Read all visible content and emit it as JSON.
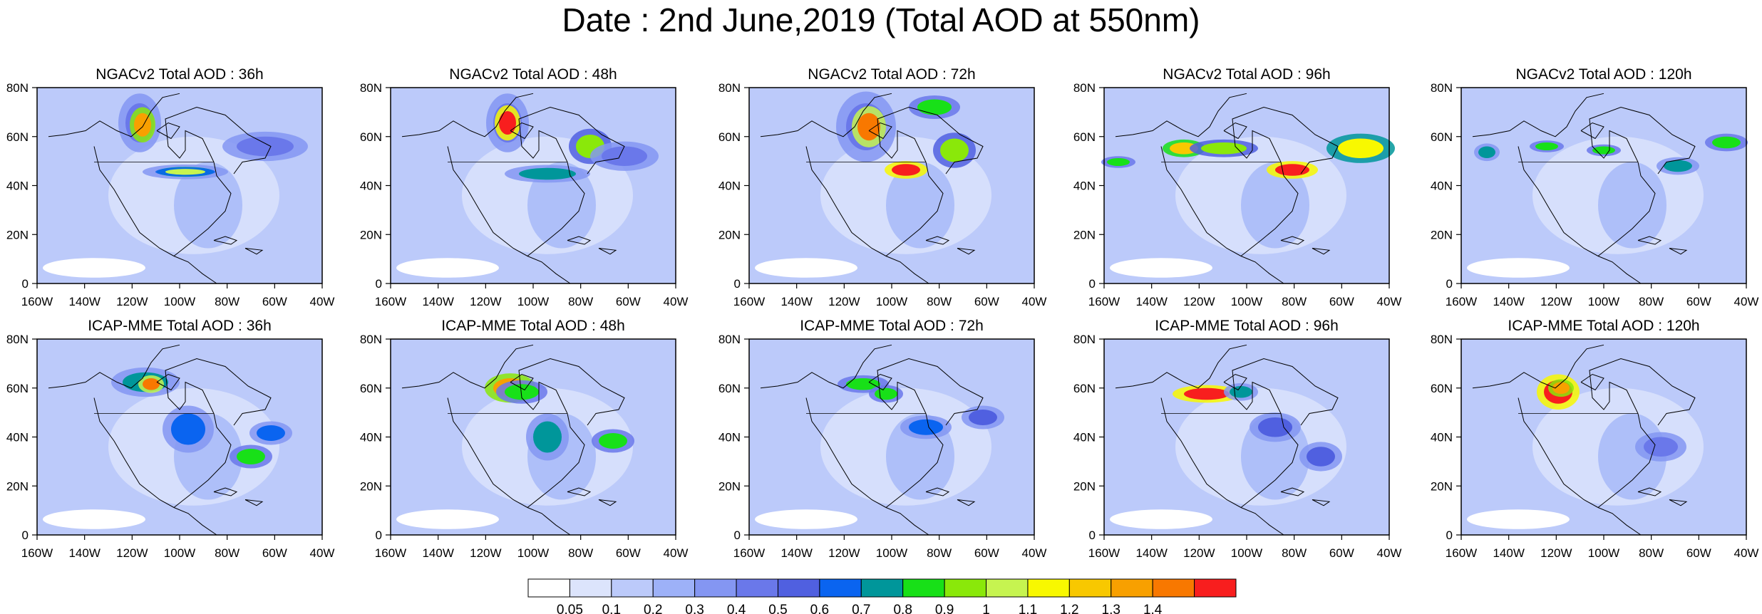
{
  "title": "Date : 2nd June,2019 (Total AOD at 550nm)",
  "panels": [
    {
      "title": "NGACv2 Total AOD : 36h"
    },
    {
      "title": "NGACv2 Total AOD : 48h"
    },
    {
      "title": "NGACv2 Total AOD : 72h"
    },
    {
      "title": "NGACv2 Total AOD : 96h"
    },
    {
      "title": "NGACv2 Total AOD : 120h"
    },
    {
      "title": "ICAP-MME Total AOD : 36h"
    },
    {
      "title": "ICAP-MME Total AOD : 48h"
    },
    {
      "title": "ICAP-MME Total AOD : 72h"
    },
    {
      "title": "ICAP-MME Total AOD : 96h"
    },
    {
      "title": "ICAP-MME Total AOD : 120h"
    }
  ],
  "lat_ticks": [
    "80N",
    "60N",
    "40N",
    "20N",
    "0"
  ],
  "lon_ticks": [
    "160W",
    "140W",
    "120W",
    "100W",
    "80W",
    "60W",
    "40W"
  ],
  "colorbar": {
    "colors": [
      "#ffffff",
      "#dce4fc",
      "#bccafa",
      "#9db1f8",
      "#8496f2",
      "#6a78ea",
      "#5060e0",
      "#0a64f0",
      "#00969a",
      "#18e018",
      "#8ae80a",
      "#c6f450",
      "#f8f800",
      "#f8c800",
      "#f8a000",
      "#f87800",
      "#f81e1e"
    ],
    "labels": [
      "0.05",
      "0.1",
      "0.2",
      "0.3",
      "0.4",
      "0.5",
      "0.6",
      "0.7",
      "0.8",
      "0.9",
      "1",
      "1.1",
      "1.2",
      "1.3",
      "1.4"
    ]
  }
}
